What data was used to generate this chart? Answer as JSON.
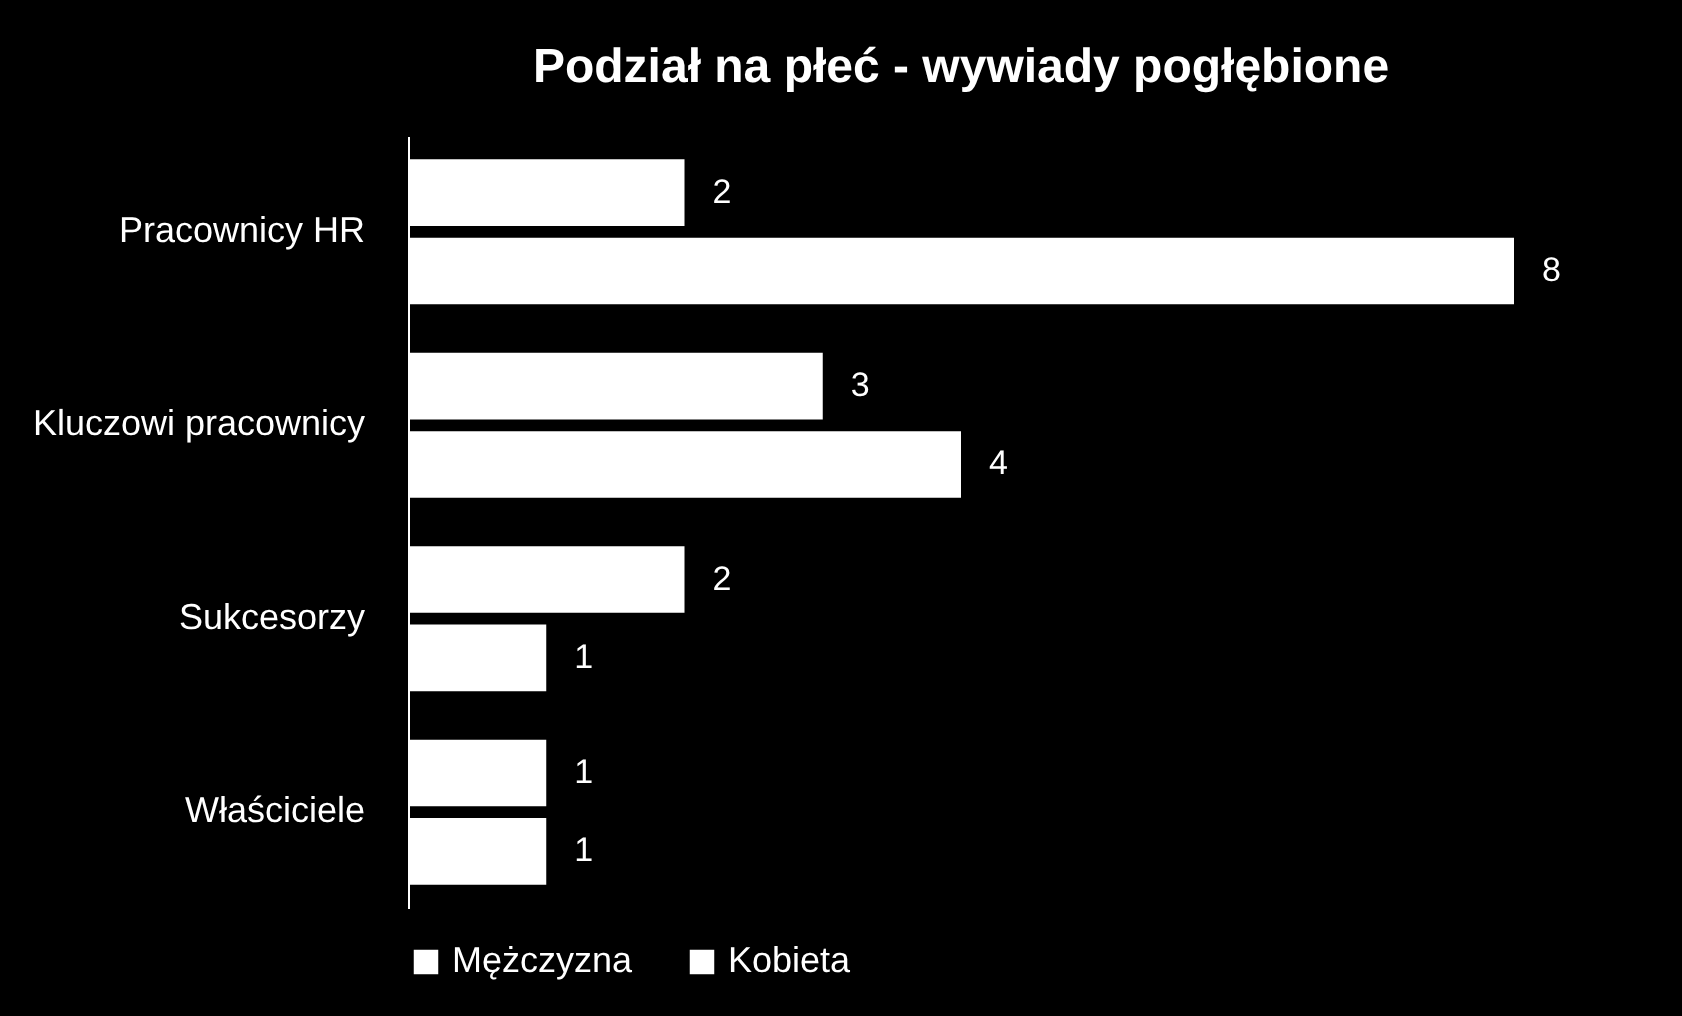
{
  "chart_data": {
    "type": "bar",
    "orientation": "horizontal",
    "title": "Podział na płeć - wywiady pogłębione",
    "categories": [
      "Pracownicy HR",
      "Kluczowi pracownicy",
      "Sukcesorzy",
      "Właściciele"
    ],
    "series": [
      {
        "name": "Mężczyzna",
        "color": "#ffffff",
        "values": [
          2,
          3,
          2,
          1
        ]
      },
      {
        "name": "Kobieta",
        "color": "#ffffff",
        "values": [
          8,
          4,
          1,
          1
        ]
      }
    ],
    "data_labels": true,
    "legend": "bottom",
    "grid": false
  }
}
